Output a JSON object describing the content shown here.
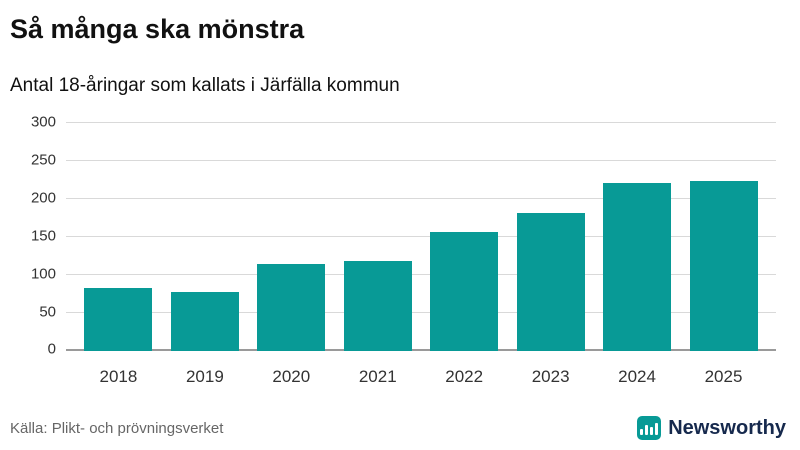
{
  "header": {
    "title": "Så många ska mönstra",
    "subtitle": "Antal 18-åringar som kallats i Järfälla kommun"
  },
  "footer": {
    "source": "Källa: Plikt- och prövningsverket",
    "brand": "Newsworthy"
  },
  "colors": {
    "bar": "#089a96",
    "brand_text": "#16294d",
    "brand_icon_bg": "#089a96",
    "gridline": "#d9d9d9",
    "axis": "#9a9a9a"
  },
  "chart_data": {
    "type": "bar",
    "title": "Så många ska mönstra",
    "subtitle": "Antal 18-åringar som kallats i Järfälla kommun",
    "categories": [
      "2018",
      "2019",
      "2020",
      "2021",
      "2022",
      "2023",
      "2024",
      "2025"
    ],
    "values": [
      83,
      77,
      114,
      118,
      157,
      181,
      221,
      224
    ],
    "xlabel": "",
    "ylabel": "",
    "ylim": [
      0,
      300
    ],
    "yticks": [
      0,
      50,
      100,
      150,
      200,
      250,
      300
    ],
    "grid": true,
    "legend": false,
    "bar_color": "#089a96"
  }
}
